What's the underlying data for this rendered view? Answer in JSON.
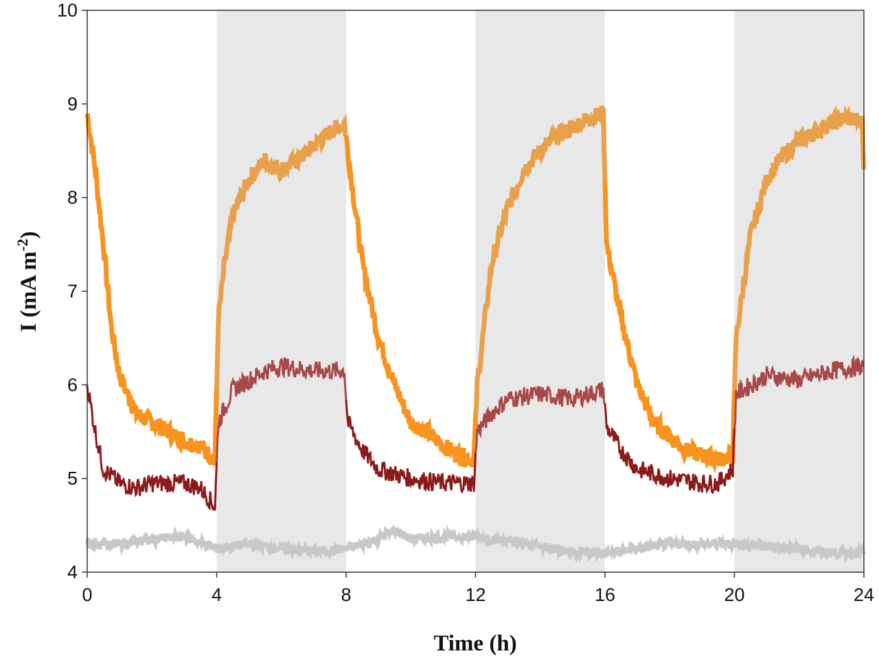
{
  "chart_data": {
    "type": "line",
    "xlabel": "Time (h)",
    "ylabel_main": "I (mA m",
    "ylabel_sup": "-2",
    "ylabel_end": ")",
    "xlim": [
      0,
      24
    ],
    "ylim": [
      4,
      10
    ],
    "xticks": [
      "0",
      "4",
      "8",
      "12",
      "16",
      "20",
      "24"
    ],
    "yticks": [
      "4",
      "5",
      "6",
      "7",
      "8",
      "9",
      "10"
    ],
    "shaded_intervals": [
      [
        4,
        8
      ],
      [
        12,
        16
      ],
      [
        20,
        24
      ]
    ],
    "shade_color": "#e8e8e8",
    "series": [
      {
        "name": "orange",
        "color": "#f7931e",
        "shaded_color": "#e9a04a",
        "width": 7,
        "x": [
          0,
          0.25,
          0.5,
          0.75,
          1,
          1.5,
          2,
          2.5,
          3,
          3.5,
          3.95,
          4.05,
          4.25,
          4.5,
          5,
          5.5,
          6,
          6.5,
          7,
          7.5,
          7.95,
          8.05,
          8.5,
          9,
          9.5,
          10,
          10.5,
          11,
          11.5,
          11.95,
          12.05,
          12.5,
          13,
          13.5,
          14,
          14.5,
          15,
          15.5,
          15.95,
          16.05,
          16.5,
          17,
          17.5,
          18,
          18.5,
          19,
          19.5,
          19.95,
          20.05,
          20.5,
          21,
          21.5,
          22,
          22.5,
          23,
          23.5,
          23.95,
          24
        ],
        "y": [
          8.9,
          8.3,
          7.5,
          6.6,
          6.1,
          5.7,
          5.6,
          5.5,
          5.4,
          5.35,
          5.2,
          6.7,
          7.3,
          7.8,
          8.2,
          8.4,
          8.3,
          8.4,
          8.55,
          8.7,
          8.8,
          8.5,
          7.3,
          6.5,
          6.0,
          5.6,
          5.5,
          5.35,
          5.25,
          5.2,
          6.0,
          7.3,
          7.9,
          8.3,
          8.5,
          8.65,
          8.75,
          8.85,
          8.9,
          7.5,
          6.7,
          6.0,
          5.6,
          5.45,
          5.3,
          5.25,
          5.2,
          5.25,
          6.5,
          7.6,
          8.2,
          8.45,
          8.6,
          8.7,
          8.8,
          8.85,
          8.8,
          8.3
        ]
      },
      {
        "name": "dark red",
        "color": "#8b1a1a",
        "shaded_color": "#a84848",
        "width": 3,
        "x": [
          0,
          0.25,
          0.5,
          1,
          1.5,
          2,
          2.5,
          3,
          3.5,
          3.95,
          4.05,
          4.5,
          5,
          5.5,
          6,
          7,
          7.95,
          8.05,
          8.5,
          9,
          10,
          11,
          11.95,
          12.05,
          12.5,
          13,
          14,
          15,
          15.95,
          16.05,
          16.5,
          17,
          18,
          19,
          19.5,
          19.95,
          20.05,
          21,
          22,
          23,
          24
        ],
        "y": [
          6.0,
          5.5,
          5.1,
          4.95,
          4.9,
          4.95,
          4.95,
          4.95,
          4.9,
          4.7,
          5.6,
          5.95,
          6.05,
          6.15,
          6.2,
          6.15,
          6.15,
          5.6,
          5.3,
          5.1,
          5.0,
          4.95,
          4.95,
          5.5,
          5.7,
          5.85,
          5.9,
          5.85,
          5.95,
          5.55,
          5.3,
          5.1,
          5.0,
          4.95,
          4.95,
          5.1,
          5.9,
          6.1,
          6.05,
          6.15,
          6.2
        ]
      },
      {
        "name": "light gray",
        "color": "#c8c8c8",
        "shaded_color": "#c8c8c8",
        "width": 6,
        "x": [
          0,
          1,
          2,
          3,
          4,
          5,
          6,
          7,
          8,
          9,
          9.5,
          10,
          11,
          12,
          13,
          14,
          15,
          16,
          17,
          18,
          19,
          20,
          21,
          22,
          23,
          24
        ],
        "y": [
          4.3,
          4.3,
          4.35,
          4.38,
          4.25,
          4.3,
          4.25,
          4.22,
          4.25,
          4.35,
          4.45,
          4.35,
          4.38,
          4.38,
          4.33,
          4.28,
          4.22,
          4.2,
          4.25,
          4.3,
          4.3,
          4.3,
          4.28,
          4.25,
          4.2,
          4.22
        ]
      }
    ]
  }
}
